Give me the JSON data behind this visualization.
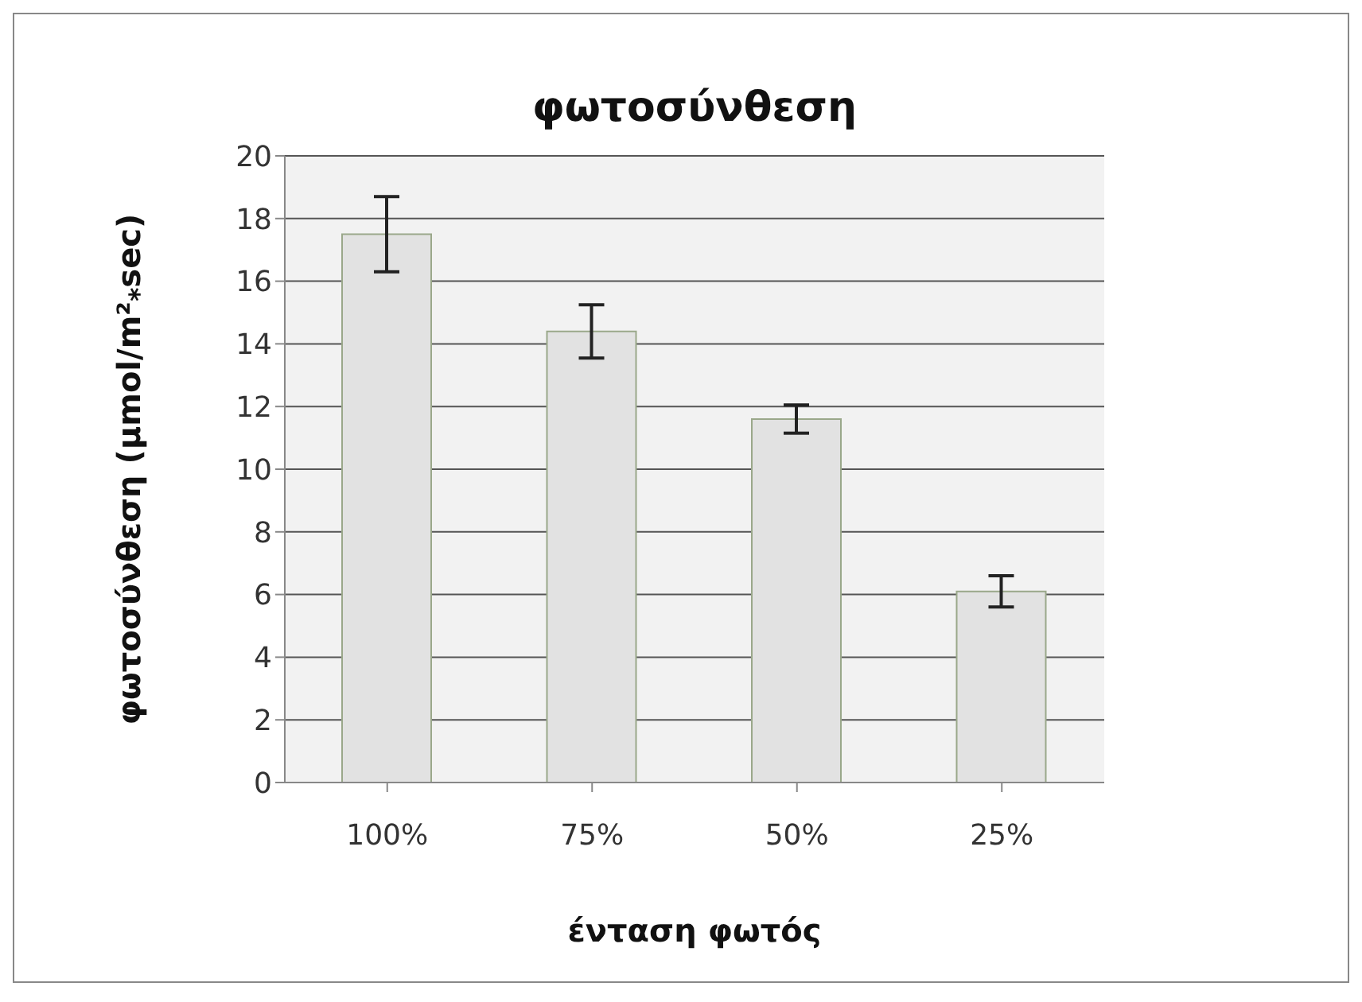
{
  "chart_data": {
    "type": "bar",
    "title": "φωτοσύνθεση",
    "xlabel": "ένταση φωτός",
    "ylabel": "φωτοσύνθεση (μmol/m²$_{*}$sec)",
    "categories": [
      "100%",
      "75%",
      "50%",
      "25%"
    ],
    "values": [
      17.5,
      14.4,
      11.6,
      6.1
    ],
    "errors": [
      1.2,
      0.85,
      0.45,
      0.5
    ],
    "color": "#e2e2e2",
    "ylim": [
      0,
      20
    ],
    "yticks": [
      0,
      2,
      4,
      6,
      8,
      10,
      12,
      14,
      16,
      18,
      20
    ],
    "grid": "y"
  }
}
